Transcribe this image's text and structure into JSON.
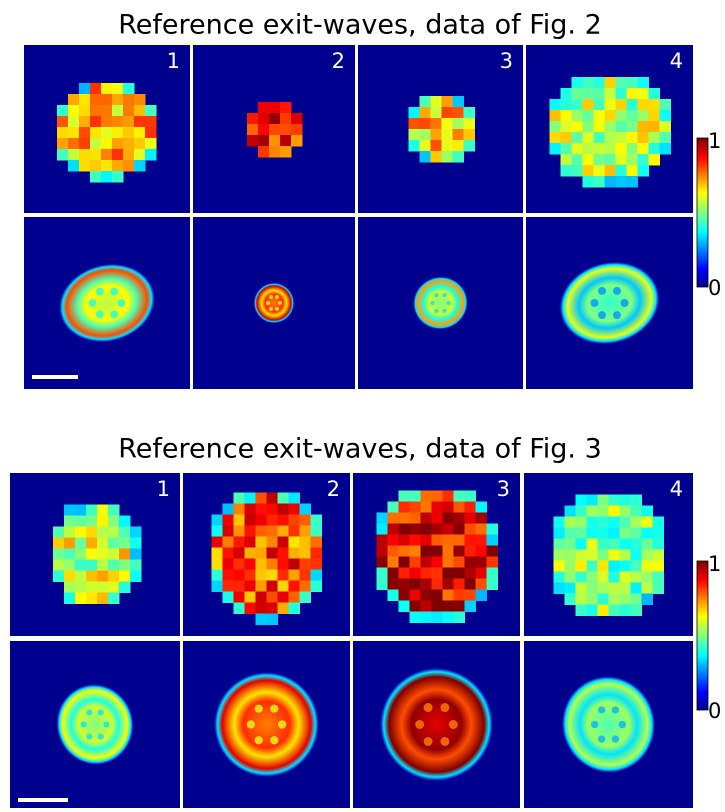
{
  "figures": [
    {
      "title": "Reference exit-waves, data of Fig. 2",
      "panel_labels": [
        "1",
        "2",
        "3",
        "4"
      ],
      "colorbar": {
        "max_label": "1",
        "min_label": "0"
      }
    },
    {
      "title": "Reference exit-waves, data of Fig. 3",
      "panel_labels": [
        "1",
        "2",
        "3",
        "4"
      ],
      "colorbar": {
        "max_label": "1",
        "min_label": "0"
      }
    }
  ]
}
